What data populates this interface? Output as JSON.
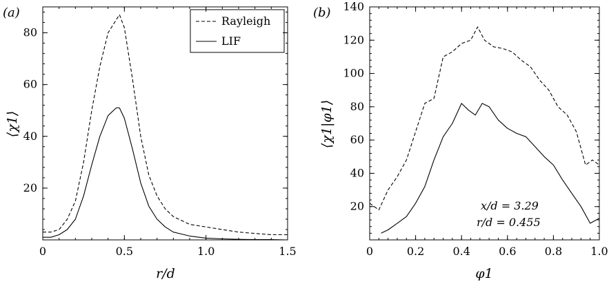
{
  "chart_data": [
    {
      "type": "line",
      "panel_label": "(a)",
      "xlabel": "r/d",
      "ylabel": "⟨χ1⟩",
      "xlim": [
        0,
        1.5
      ],
      "ylim": [
        0,
        90
      ],
      "xticks": [
        0,
        0.5,
        1.0,
        1.5
      ],
      "xtick_labels": [
        "0",
        "0.5",
        "1.0",
        "1.5"
      ],
      "yticks": [
        20,
        40,
        60,
        80
      ],
      "ytick_labels": [
        "20",
        "40",
        "60",
        "80"
      ],
      "legend": {
        "placement": "top-right",
        "entries": [
          "Rayleigh",
          "LIF"
        ]
      },
      "series": [
        {
          "name": "Rayleigh",
          "style": "dashed",
          "x": [
            0.0,
            0.05,
            0.1,
            0.15,
            0.2,
            0.25,
            0.3,
            0.35,
            0.4,
            0.45,
            0.47,
            0.5,
            0.55,
            0.6,
            0.65,
            0.7,
            0.75,
            0.8,
            0.9,
            1.0,
            1.1,
            1.2,
            1.3,
            1.4,
            1.5
          ],
          "y": [
            3,
            3,
            4,
            8,
            15,
            30,
            50,
            67,
            80,
            85,
            87,
            82,
            62,
            40,
            25,
            17,
            12,
            9,
            6,
            5,
            4,
            3,
            2.5,
            2,
            2
          ]
        },
        {
          "name": "LIF",
          "style": "solid",
          "x": [
            0.0,
            0.05,
            0.1,
            0.15,
            0.2,
            0.25,
            0.3,
            0.35,
            0.4,
            0.45,
            0.47,
            0.5,
            0.55,
            0.6,
            0.65,
            0.7,
            0.75,
            0.8,
            0.9,
            1.0,
            1.1,
            1.2,
            1.3,
            1.4,
            1.5
          ],
          "y": [
            1,
            1,
            2,
            4,
            8,
            17,
            29,
            40,
            48,
            51,
            51,
            47,
            35,
            22,
            13,
            8,
            5,
            3,
            1.5,
            0.7,
            0.4,
            0.2,
            0.1,
            0.1,
            0
          ]
        }
      ]
    },
    {
      "type": "line",
      "panel_label": "(b)",
      "xlabel": "φ1",
      "ylabel": "⟨χ1|φ1⟩",
      "xlim": [
        0,
        1.0
      ],
      "ylim": [
        0,
        140
      ],
      "xticks": [
        0,
        0.2,
        0.4,
        0.6,
        0.8,
        1.0
      ],
      "xtick_labels": [
        "0",
        "0.2",
        "0.4",
        "0.6",
        "0.8",
        "1.0"
      ],
      "yticks": [
        20,
        40,
        60,
        80,
        100,
        120,
        140
      ],
      "ytick_labels": [
        "20",
        "40",
        "60",
        "80",
        "100",
        "120",
        "140"
      ],
      "annotations": [
        "x/d = 3.29",
        "r/d = 0.455"
      ],
      "series": [
        {
          "name": "Rayleigh",
          "style": "dashed",
          "x": [
            0.0,
            0.04,
            0.08,
            0.12,
            0.16,
            0.2,
            0.24,
            0.28,
            0.32,
            0.36,
            0.4,
            0.44,
            0.47,
            0.5,
            0.54,
            0.58,
            0.62,
            0.66,
            0.7,
            0.74,
            0.78,
            0.82,
            0.86,
            0.9,
            0.94,
            0.97,
            1.0
          ],
          "y": [
            22,
            18,
            30,
            38,
            48,
            65,
            82,
            85,
            110,
            113,
            118,
            120,
            128,
            120,
            116,
            115,
            113,
            108,
            104,
            96,
            90,
            80,
            75,
            65,
            45,
            48,
            45
          ]
        },
        {
          "name": "LIF",
          "style": "solid",
          "x": [
            0.05,
            0.08,
            0.12,
            0.16,
            0.2,
            0.24,
            0.28,
            0.32,
            0.36,
            0.4,
            0.43,
            0.46,
            0.49,
            0.52,
            0.56,
            0.6,
            0.64,
            0.68,
            0.72,
            0.76,
            0.8,
            0.84,
            0.88,
            0.92,
            0.96,
            1.0
          ],
          "y": [
            4,
            6,
            10,
            14,
            22,
            32,
            48,
            62,
            70,
            82,
            78,
            75,
            82,
            80,
            72,
            67,
            64,
            62,
            56,
            50,
            45,
            36,
            28,
            20,
            10,
            13
          ]
        }
      ]
    }
  ]
}
